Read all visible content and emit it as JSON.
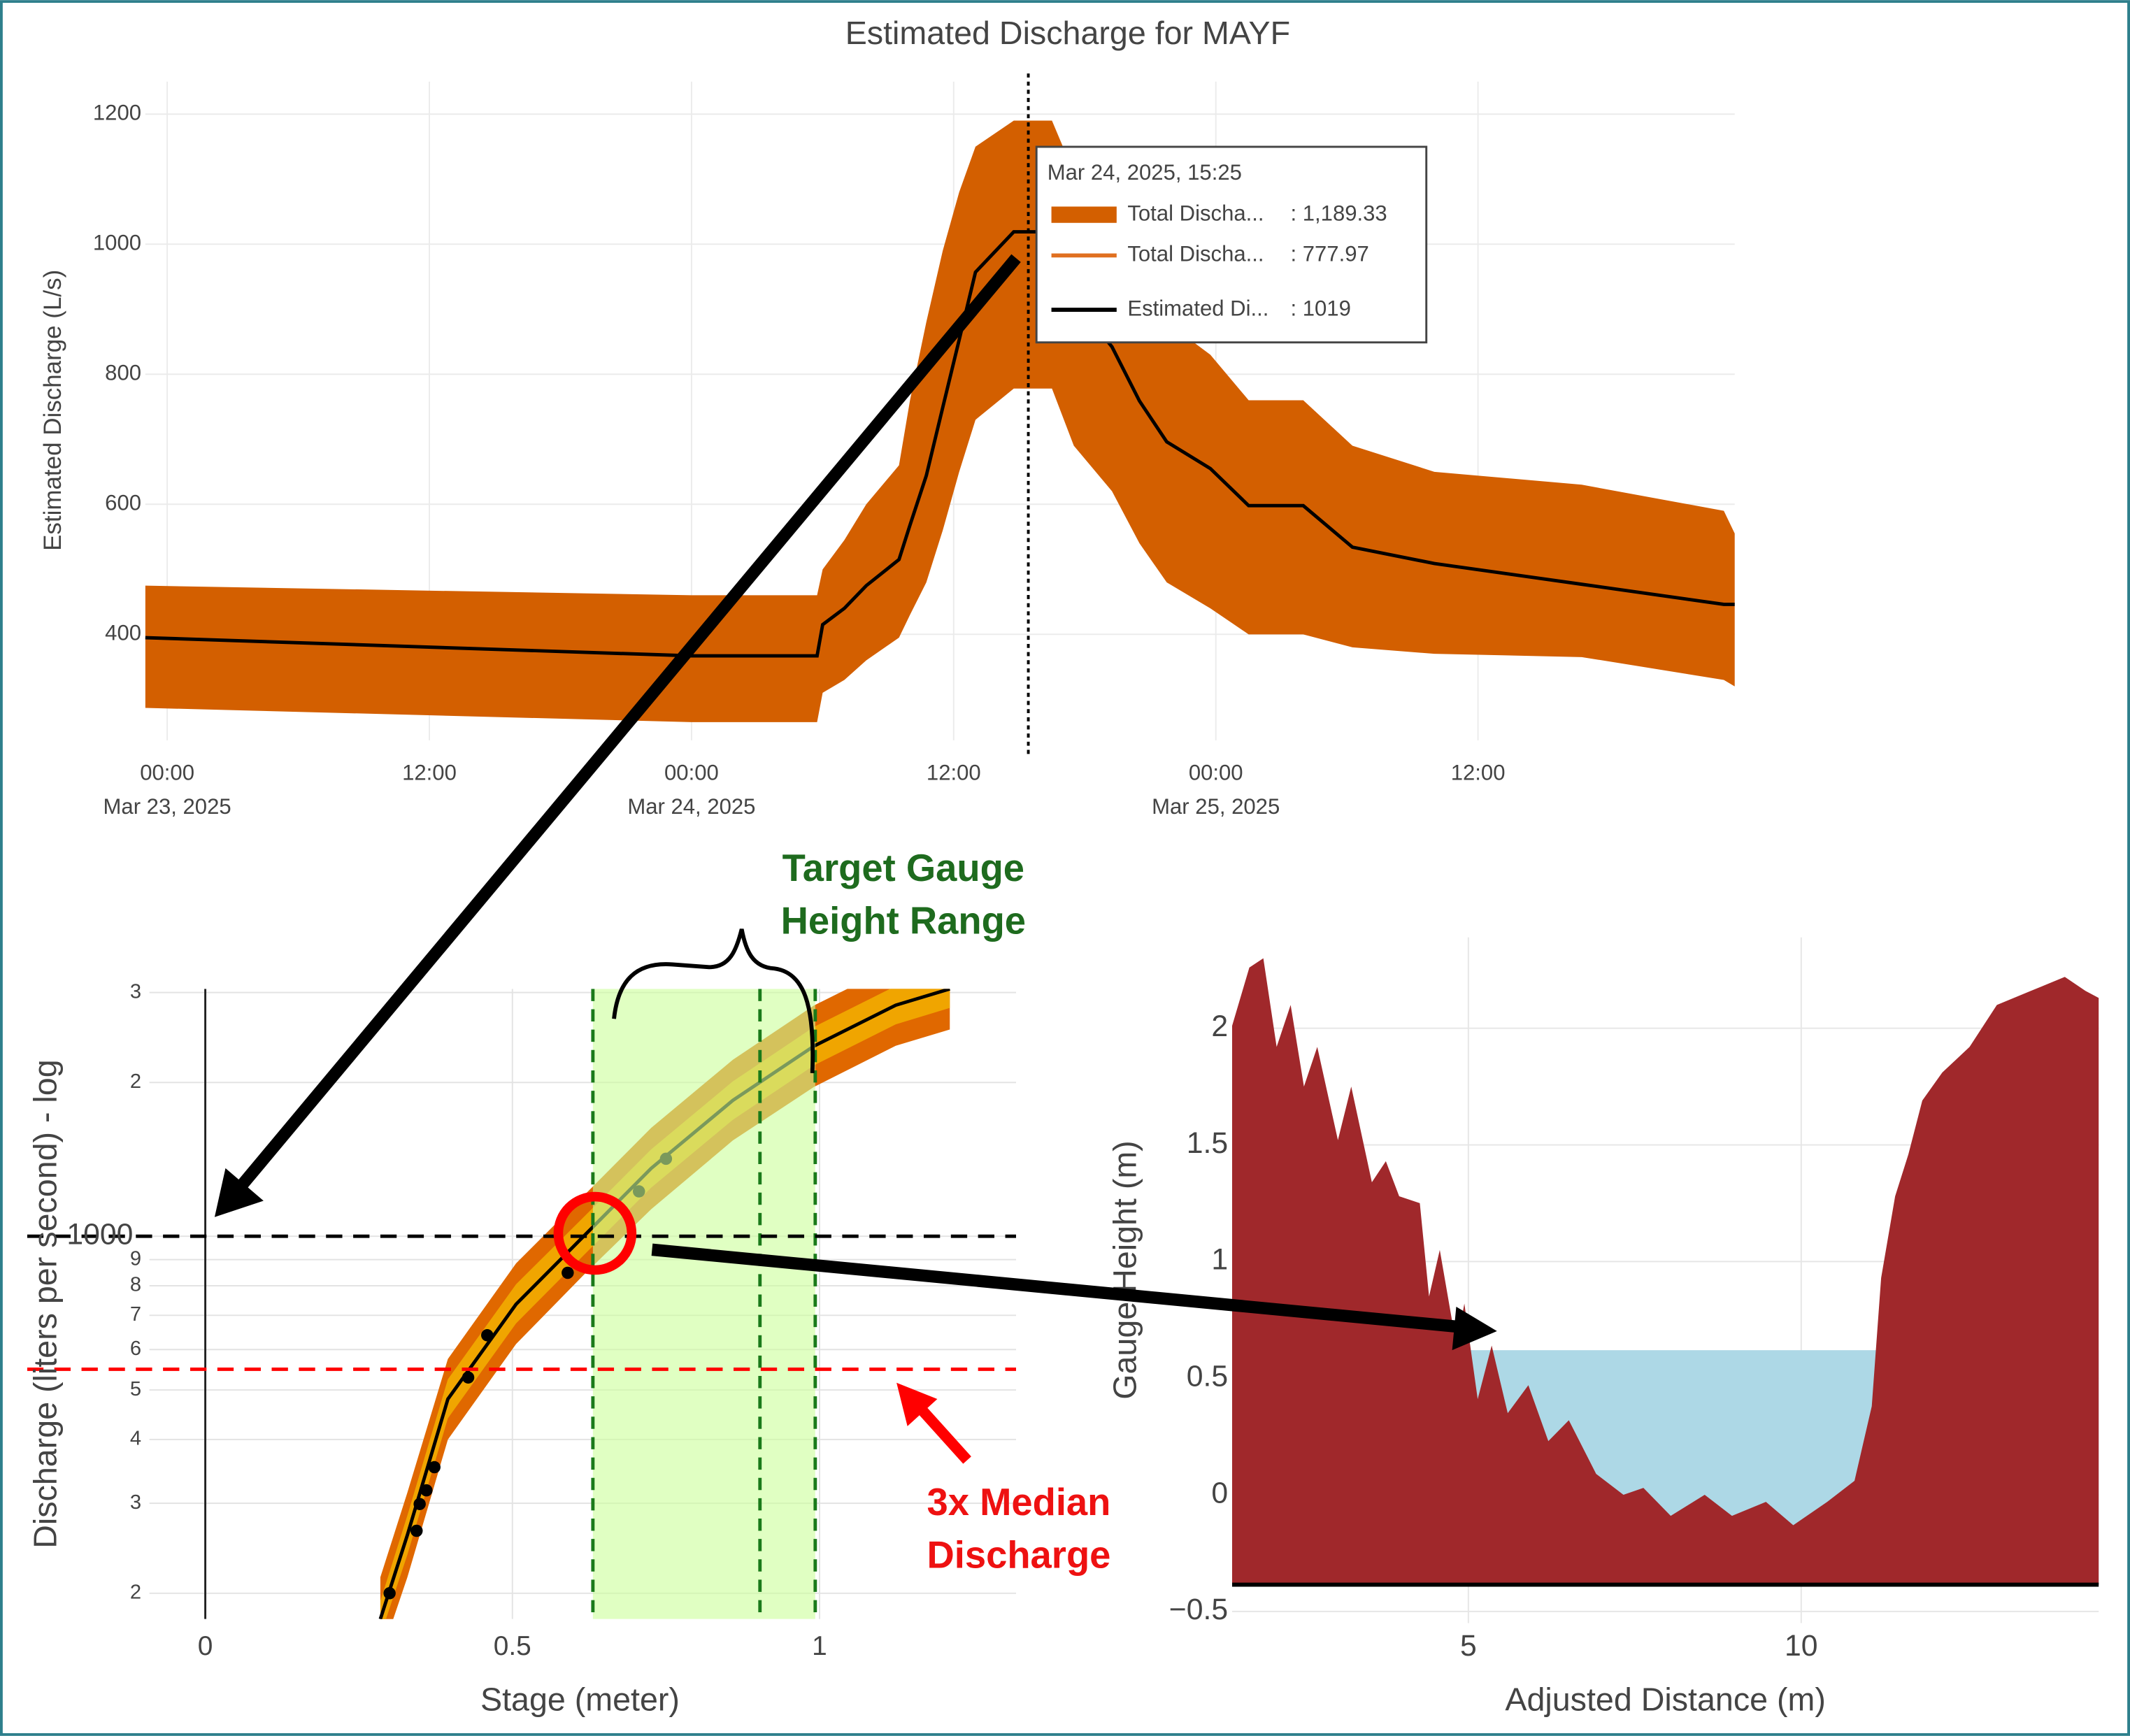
{
  "chart_data": [
    {
      "type": "line",
      "title": "Estimated Discharge for MAYF",
      "y_label": "Estimated Discharge (L/s)",
      "x": [
        "2025-03-22 23:00",
        "2025-03-24 00:00",
        "2025-03-24 05:45",
        "2025-03-24 06:00",
        "2025-03-24 07:00",
        "2025-03-24 08:00",
        "2025-03-24 09:30",
        "2025-03-24 10:00",
        "2025-03-24 10:45",
        "2025-03-24 11:30",
        "2025-03-24 12:15",
        "2025-03-24 13:00",
        "2025-03-24 14:45",
        "2025-03-24 16:30",
        "2025-03-24 17:30",
        "2025-03-24 19:15",
        "2025-03-24 20:30",
        "2025-03-24 21:45",
        "2025-03-24 23:45",
        "2025-03-25 01:30",
        "2025-03-25 04:00",
        "2025-03-25 06:15",
        "2025-03-25 10:00",
        "2025-03-25 16:45",
        "2025-03-25 23:15",
        "2025-03-25 23:45"
      ],
      "series": [
        {
          "name": "Total Discha...",
          "color": "#d35f00",
          "lower": [
            287,
            265,
            265,
            310,
            330,
            360,
            395,
            430,
            480,
            560,
            650,
            730,
            778,
            778,
            690,
            620,
            540,
            480,
            440,
            400,
            400,
            380,
            370,
            365,
            330,
            320
          ],
          "upper": [
            475,
            460,
            460,
            500,
            545,
            600,
            660,
            760,
            880,
            990,
            1080,
            1150,
            1190,
            1190,
            1110,
            1030,
            950,
            880,
            830,
            760,
            760,
            690,
            650,
            630,
            590,
            555
          ]
        },
        {
          "name": "Estimated Di...",
          "color": "#000000",
          "values": [
            395,
            367,
            367,
            415,
            440,
            475,
            515,
            568,
            644,
            749,
            853,
            957,
            1019,
            1019,
            915,
            842,
            759,
            696,
            655,
            598,
            598,
            534,
            509,
            477,
            446,
            446
          ]
        }
      ],
      "xlim": [
        "2025-03-22 23:00",
        "2025-03-25 23:45"
      ],
      "xticks": [
        {
          "value": "2025-03-23 00:00",
          "label": "00:00"
        },
        {
          "value": "2025-03-23 12:00",
          "label": "12:00"
        },
        {
          "value": "2025-03-24 00:00",
          "label": "00:00"
        },
        {
          "value": "2025-03-24 12:00",
          "label": "12:00"
        },
        {
          "value": "2025-03-25 00:00",
          "label": "00:00"
        },
        {
          "value": "2025-03-25 12:00",
          "label": "12:00"
        }
      ],
      "xtick_dates": [
        {
          "value": "2025-03-23 00:00",
          "label": "Mar 23, 2025"
        },
        {
          "value": "2025-03-24 00:00",
          "label": "Mar 24, 2025"
        },
        {
          "value": "2025-03-25 00:00",
          "label": "Mar 25, 2025"
        }
      ],
      "ylim": [
        237,
        1250
      ],
      "yticks": [
        400,
        600,
        800,
        1000,
        1200
      ],
      "grid": true,
      "hover": {
        "x": "2025-03-24 15:25",
        "label": "Mar 24, 2025, 15:25",
        "items": [
          {
            "name": "Total Discha...",
            "value": 1189.33,
            "value_label": ": 1,189.33",
            "style": "band",
            "color": "#d35f00"
          },
          {
            "name": "Total Discha...",
            "value": 777.97,
            "value_label": ": 777.97",
            "style": "line",
            "color": "#e07020"
          },
          {
            "name": "Estimated Di...",
            "value": 1019,
            "value_label": ": 1019",
            "style": "line",
            "color": "#000000"
          }
        ]
      }
    },
    {
      "type": "scatter",
      "x_label": "Stage (meter)",
      "y_label": "Discharge (liters per second) - log",
      "log_y": true,
      "x": [
        0.3,
        0.344,
        0.349,
        0.36,
        0.373,
        0.428,
        0.459,
        0.59,
        0.706,
        0.75
      ],
      "values": [
        200,
        265,
        299,
        318,
        353,
        529,
        640,
        848,
        1224,
        1418
      ],
      "color": "#000000",
      "curve": {
        "x": [
          0.285,
          0.329,
          0.395,
          0.506,
          0.616,
          0.726,
          0.859,
          0.991,
          1.124,
          1.212
        ],
        "values": [
          178,
          260,
          480,
          736,
          1000,
          1358,
          1845,
          2357,
          2834,
          3050
        ],
        "color": "#000000"
      },
      "bands": [
        {
          "color": "#e06800",
          "lower": [
            150,
            215,
            400,
            615,
            840,
            1130,
            1540,
            1960,
            2360,
            2540
          ],
          "upper": [
            215,
            315,
            575,
            885,
            1200,
            1630,
            2215,
            2830,
            3400,
            3660
          ]
        },
        {
          "color": "#f0a500",
          "lower": [
            165,
            238,
            440,
            675,
            918,
            1245,
            1690,
            2160,
            2600,
            2800
          ],
          "upper": [
            193,
            284,
            525,
            805,
            1090,
            1480,
            2010,
            2570,
            3090,
            3320
          ]
        }
      ],
      "xlim": [
        -0.29,
        1.32
      ],
      "xticks": [
        0,
        0.5,
        1
      ],
      "ylim": [
        178,
        3050
      ],
      "yticks": [
        {
          "value": 200,
          "label": "2"
        },
        {
          "value": 300,
          "label": "3"
        },
        {
          "value": 400,
          "label": "4"
        },
        {
          "value": 500,
          "label": "5"
        },
        {
          "value": 600,
          "label": "6"
        },
        {
          "value": 700,
          "label": "7"
        },
        {
          "value": 800,
          "label": "8"
        },
        {
          "value": 900,
          "label": "9"
        },
        1000,
        {
          "value": 2000,
          "label": "2"
        },
        {
          "value": 3000,
          "label": "3"
        }
      ],
      "grid": true,
      "highlight": {
        "x": [
          0.631,
          0.993
        ],
        "color": "#ccff99"
      },
      "vlines": [
        0.631,
        0.903,
        0.993
      ],
      "vline_color": "#1a7a1a",
      "hlines": [
        {
          "y": 1000,
          "color": "#000000"
        },
        {
          "y": 549,
          "color": "#ff0000"
        }
      ],
      "target_label": [
        "Target Gauge",
        "Height Range"
      ],
      "median_label": [
        "3x Median",
        "Discharge"
      ]
    },
    {
      "type": "area",
      "x_label": "Adjusted Distance (m)",
      "y_label": "Gauge Height (m)",
      "x": [
        1.45,
        1.71,
        1.92,
        2.12,
        2.33,
        2.53,
        2.73,
        3.04,
        3.24,
        3.55,
        3.76,
        3.96,
        4.27,
        4.41,
        4.57,
        4.82,
        4.94,
        5.14,
        5.35,
        5.59,
        5.9,
        6.2,
        6.51,
        6.92,
        7.33,
        7.63,
        8.04,
        8.55,
        8.96,
        9.47,
        9.88,
        10.39,
        10.8,
        11.06,
        11.2,
        11.41,
        11.61,
        11.82,
        12.12,
        12.53,
        12.94,
        13.45,
        13.96,
        14.27,
        14.47
      ],
      "values": [
        2.01,
        2.26,
        2.3,
        1.92,
        2.1,
        1.75,
        1.92,
        1.52,
        1.75,
        1.34,
        1.43,
        1.28,
        1.25,
        0.85,
        1.05,
        0.64,
        0.82,
        0.41,
        0.64,
        0.35,
        0.47,
        0.23,
        0.32,
        0.09,
        0.0,
        0.03,
        -0.09,
        0.0,
        -0.09,
        -0.03,
        -0.13,
        -0.03,
        0.06,
        0.38,
        0.93,
        1.28,
        1.46,
        1.69,
        1.81,
        1.92,
        2.1,
        2.16,
        2.22,
        2.16,
        2.13
      ],
      "color": "#a0282b",
      "baseline": -0.385,
      "water_level": 0.62,
      "water_color": "#add8e6",
      "xlim": [
        1.45,
        14.47
      ],
      "xticks": [
        5,
        10
      ],
      "ylim": [
        -0.55,
        2.39
      ],
      "yticks": [
        2,
        1.5,
        1,
        0.5,
        0,
        {
          "value": -0.5,
          "label": "−0.5"
        }
      ],
      "grid": true
    }
  ]
}
